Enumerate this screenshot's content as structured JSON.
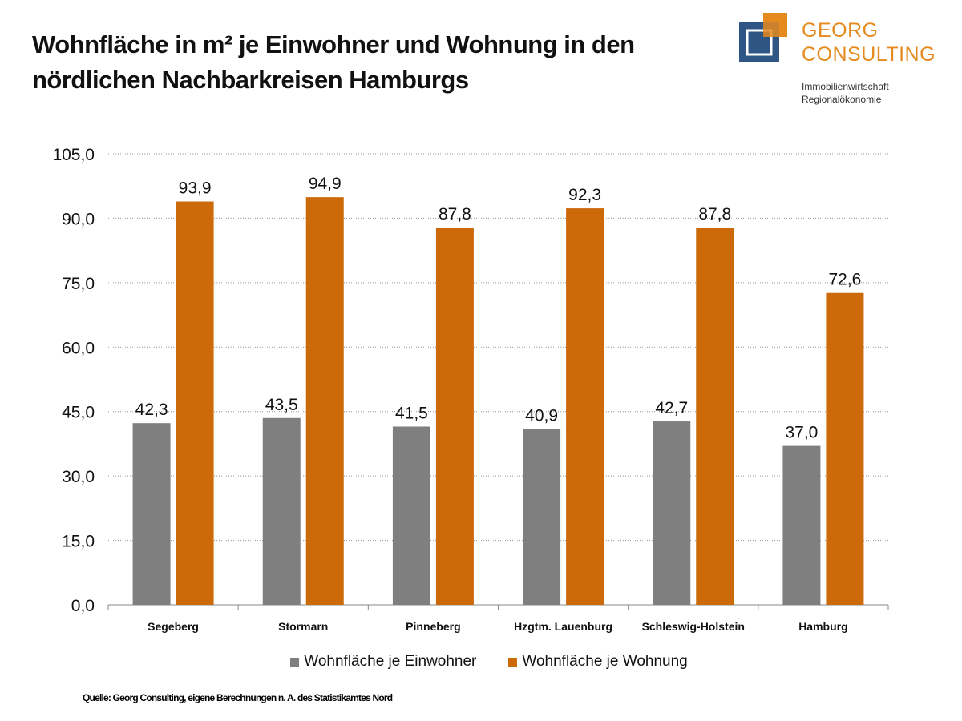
{
  "title_line1": "Wohnfläche in m² je Einwohner und Wohnung in den",
  "title_line2": "nördlichen Nachbarkreisen Hamburgs",
  "logo": {
    "line1": "GEORG",
    "line2": "CONSULTING",
    "sub1": "Immobilienwirtschaft",
    "sub2": "Regionalökonomie",
    "colors": {
      "orange": "#e58a1f",
      "blue": "#2f5584"
    }
  },
  "source": "Quelle: Georg Consulting, eigene Berechnungen n. A. des Statistikamtes Nord",
  "chart_data": {
    "type": "bar",
    "categories": [
      "Segeberg",
      "Stormarn",
      "Pinneberg",
      "Hzgtm. Lauenburg",
      "Schleswig-Holstein",
      "Hamburg"
    ],
    "series": [
      {
        "name": "Wohnfläche je Einwohner",
        "color": "#7f7f7f",
        "values": [
          42.3,
          43.5,
          41.5,
          40.9,
          42.7,
          37.0
        ]
      },
      {
        "name": "Wohnfläche je Wohnung",
        "color": "#cc6a0a",
        "values": [
          93.9,
          94.9,
          87.8,
          92.3,
          87.8,
          72.6
        ]
      }
    ],
    "ylim": [
      0,
      105
    ],
    "yticks": [
      "0,0",
      "15,0",
      "30,0",
      "45,0",
      "60,0",
      "75,0",
      "90,0",
      "105,0"
    ],
    "grid": true,
    "legend": "bottom"
  }
}
